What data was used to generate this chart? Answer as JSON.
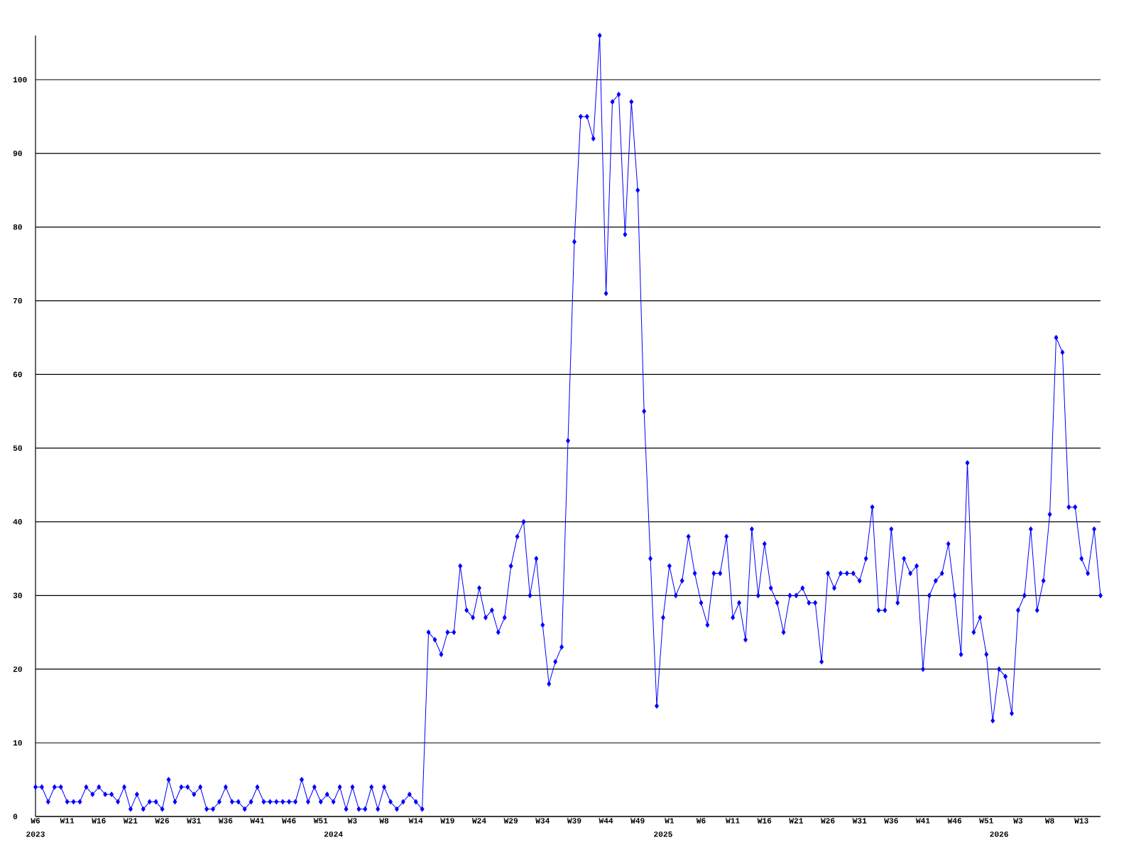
{
  "chart_data": {
    "type": "line",
    "categories": [
      "W6",
      null,
      null,
      null,
      null,
      "W11",
      null,
      null,
      null,
      null,
      "W16",
      null,
      null,
      null,
      null,
      "W21",
      null,
      null,
      null,
      null,
      "W26",
      null,
      null,
      null,
      null,
      "W31",
      null,
      null,
      null,
      null,
      "W36",
      null,
      null,
      null,
      null,
      "W41",
      null,
      null,
      null,
      null,
      "W46",
      null,
      null,
      null,
      null,
      "W51",
      null,
      null,
      null,
      null,
      "W3",
      null,
      null,
      null,
      null,
      "W8",
      null,
      null,
      null,
      null,
      "W14",
      null,
      null,
      null,
      null,
      "W19",
      null,
      null,
      null,
      null,
      "W24",
      null,
      null,
      null,
      null,
      "W29",
      null,
      null,
      null,
      null,
      "W34",
      null,
      null,
      null,
      null,
      "W39",
      null,
      null,
      null,
      null,
      "W44",
      null,
      null,
      null,
      null,
      "W49",
      null,
      null,
      null,
      null,
      "W1",
      null,
      null,
      null,
      null,
      "W6",
      null,
      null,
      null,
      null,
      "W11",
      null,
      null,
      null,
      null,
      "W16",
      null,
      null,
      null,
      null,
      "W21",
      null,
      null,
      null,
      null,
      "W26",
      null,
      null,
      null,
      null,
      "W31",
      null,
      null,
      null,
      null,
      "W36",
      null,
      null,
      null,
      null,
      "W41",
      null,
      null,
      null,
      null,
      "W46",
      null,
      null,
      null,
      null,
      "W51",
      null,
      null,
      null,
      null,
      "W3",
      null,
      null,
      null,
      null,
      "W8",
      null,
      null,
      null,
      null,
      "W13",
      null,
      null,
      null
    ],
    "values": [
      4,
      4,
      2,
      4,
      4,
      2,
      2,
      2,
      4,
      3,
      4,
      3,
      3,
      2,
      4,
      1,
      3,
      1,
      2,
      2,
      1,
      5,
      2,
      4,
      4,
      3,
      4,
      1,
      1,
      2,
      4,
      2,
      2,
      1,
      2,
      4,
      2,
      2,
      2,
      2,
      2,
      2,
      5,
      2,
      4,
      2,
      3,
      2,
      4,
      1,
      4,
      1,
      1,
      4,
      1,
      4,
      2,
      1,
      2,
      3,
      2,
      1,
      25,
      24,
      22,
      25,
      25,
      34,
      28,
      27,
      31,
      27,
      28,
      25,
      27,
      34,
      38,
      40,
      30,
      35,
      26,
      18,
      21,
      23,
      51,
      78,
      95,
      95,
      92,
      106,
      71,
      97,
      98,
      79,
      97,
      85,
      55,
      35,
      15,
      27,
      34,
      30,
      32,
      38,
      33,
      29,
      26,
      33,
      33,
      38,
      27,
      29,
      24,
      39,
      30,
      37,
      31,
      29,
      25,
      30,
      30,
      31,
      29,
      29,
      21,
      33,
      31,
      33,
      33,
      33,
      32,
      35,
      42,
      28,
      28,
      39,
      29,
      35,
      33,
      34,
      20,
      30,
      32,
      33,
      37,
      30,
      22,
      48,
      25,
      27,
      22,
      13,
      20,
      19,
      14,
      28,
      30,
      39,
      28,
      32,
      41,
      65,
      63,
      42,
      42,
      35,
      33,
      39,
      30
    ],
    "color": "#0000ff",
    "marker": "diamond",
    "line_style": "solid",
    "ylim": [
      0,
      106
    ],
    "yticks": [
      0,
      10,
      20,
      30,
      40,
      50,
      60,
      70,
      80,
      90,
      100
    ],
    "grid": "y",
    "annotations": [
      "2023",
      "2024",
      "2025",
      "2026"
    ]
  }
}
